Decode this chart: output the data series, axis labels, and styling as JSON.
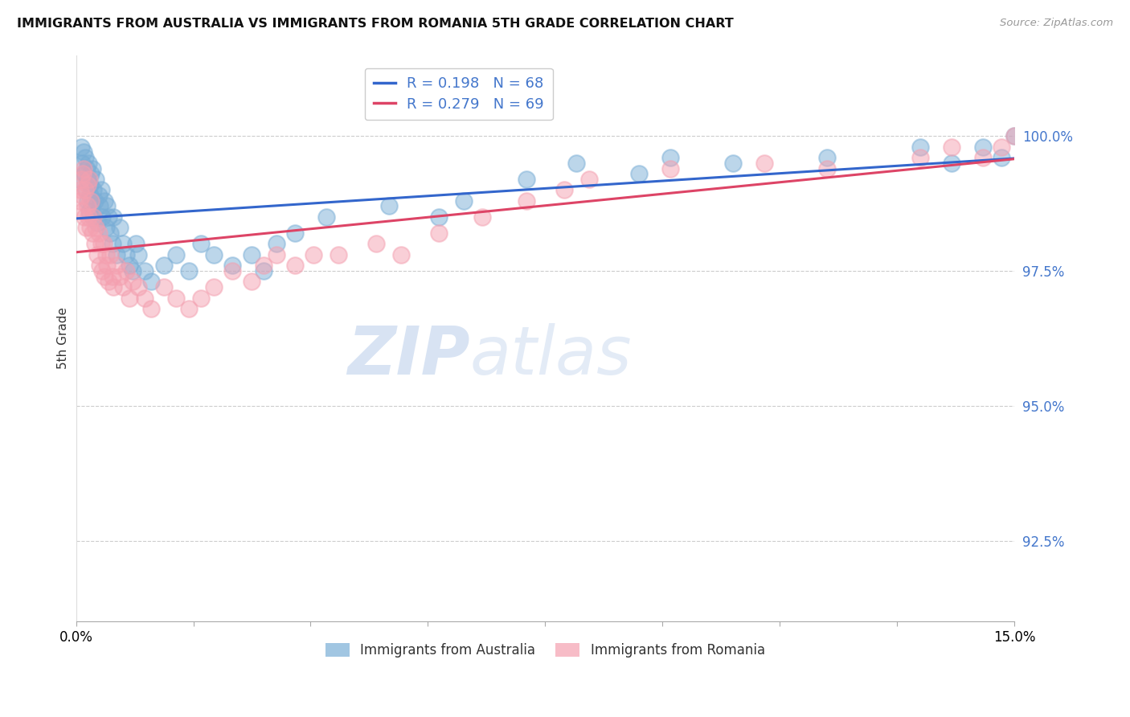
{
  "title": "IMMIGRANTS FROM AUSTRALIA VS IMMIGRANTS FROM ROMANIA 5TH GRADE CORRELATION CHART",
  "source": "Source: ZipAtlas.com",
  "ylabel": "5th Grade",
  "xlim": [
    0.0,
    15.0
  ],
  "ylim": [
    91.0,
    101.5
  ],
  "yticks": [
    92.5,
    95.0,
    97.5,
    100.0
  ],
  "ytick_labels": [
    "92.5%",
    "95.0%",
    "97.5%",
    "100.0%"
  ],
  "R_australia": 0.198,
  "N_australia": 68,
  "R_romania": 0.279,
  "N_romania": 69,
  "color_australia": "#7aaed6",
  "color_romania": "#f4a0b0",
  "line_color_australia": "#3366cc",
  "line_color_romania": "#dd4466",
  "watermark_zip": "ZIP",
  "watermark_atlas": "atlas",
  "aus_x": [
    0.08,
    0.1,
    0.12,
    0.13,
    0.15,
    0.16,
    0.17,
    0.18,
    0.19,
    0.2,
    0.21,
    0.22,
    0.23,
    0.24,
    0.25,
    0.26,
    0.27,
    0.28,
    0.3,
    0.32,
    0.34,
    0.36,
    0.38,
    0.4,
    0.42,
    0.45,
    0.48,
    0.5,
    0.52,
    0.55,
    0.58,
    0.6,
    0.65,
    0.7,
    0.75,
    0.8,
    0.85,
    0.9,
    0.95,
    1.0,
    1.1,
    1.2,
    1.4,
    1.6,
    1.8,
    2.0,
    2.2,
    2.5,
    2.8,
    3.0,
    3.2,
    3.5,
    4.0,
    5.0,
    5.8,
    6.2,
    7.2,
    8.0,
    9.0,
    9.5,
    10.5,
    12.0,
    13.5,
    14.0,
    14.5,
    14.8,
    15.0,
    0.05
  ],
  "aus_y": [
    99.8,
    99.5,
    99.7,
    99.3,
    99.6,
    99.0,
    99.4,
    98.8,
    99.2,
    99.5,
    98.6,
    99.1,
    98.9,
    99.3,
    98.7,
    99.4,
    98.5,
    99.0,
    98.8,
    99.2,
    98.4,
    98.9,
    98.7,
    99.0,
    98.5,
    98.8,
    98.3,
    98.7,
    98.5,
    98.2,
    98.0,
    98.5,
    97.8,
    98.3,
    98.0,
    97.8,
    97.6,
    97.5,
    98.0,
    97.8,
    97.5,
    97.3,
    97.6,
    97.8,
    97.5,
    98.0,
    97.8,
    97.6,
    97.8,
    97.5,
    98.0,
    98.2,
    98.5,
    98.7,
    98.5,
    98.8,
    99.2,
    99.5,
    99.3,
    99.6,
    99.5,
    99.6,
    99.8,
    99.5,
    99.8,
    99.6,
    100.0,
    99.2
  ],
  "rom_x": [
    0.06,
    0.08,
    0.1,
    0.12,
    0.14,
    0.15,
    0.16,
    0.18,
    0.19,
    0.2,
    0.21,
    0.22,
    0.24,
    0.26,
    0.28,
    0.3,
    0.32,
    0.34,
    0.36,
    0.38,
    0.4,
    0.42,
    0.44,
    0.46,
    0.48,
    0.5,
    0.52,
    0.55,
    0.58,
    0.6,
    0.65,
    0.7,
    0.75,
    0.8,
    0.85,
    0.9,
    1.0,
    1.1,
    1.2,
    1.4,
    1.6,
    1.8,
    2.0,
    2.2,
    2.5,
    2.8,
    3.0,
    3.2,
    3.5,
    3.8,
    4.2,
    4.8,
    5.2,
    5.8,
    6.5,
    7.2,
    7.8,
    8.2,
    9.5,
    11.0,
    12.0,
    13.5,
    14.0,
    14.5,
    14.8,
    15.0,
    0.07,
    0.09,
    0.11
  ],
  "rom_y": [
    98.8,
    99.2,
    98.6,
    99.4,
    98.5,
    99.0,
    98.3,
    99.1,
    98.7,
    98.5,
    99.2,
    98.3,
    98.8,
    98.2,
    98.5,
    98.0,
    98.3,
    97.8,
    98.2,
    97.6,
    98.0,
    97.5,
    98.0,
    97.4,
    97.8,
    97.6,
    97.3,
    97.8,
    97.4,
    97.2,
    97.6,
    97.4,
    97.2,
    97.5,
    97.0,
    97.3,
    97.2,
    97.0,
    96.8,
    97.2,
    97.0,
    96.8,
    97.0,
    97.2,
    97.5,
    97.3,
    97.6,
    97.8,
    97.6,
    97.8,
    97.8,
    98.0,
    97.8,
    98.2,
    98.5,
    98.8,
    99.0,
    99.2,
    99.4,
    99.5,
    99.4,
    99.6,
    99.8,
    99.6,
    99.8,
    100.0,
    99.0,
    98.9,
    99.3
  ]
}
